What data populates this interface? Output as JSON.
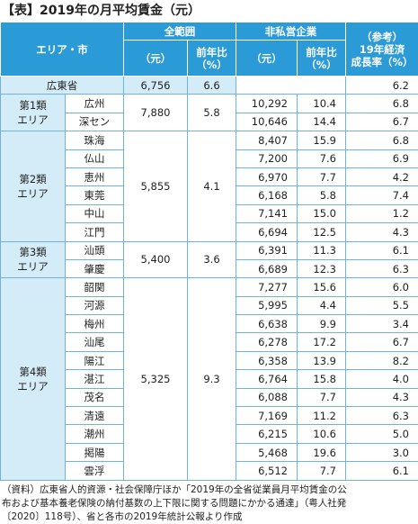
{
  "title": "【表】2019年の月平均賃金（元）",
  "header": {
    "area": "エリア・市",
    "all_range": "全範囲",
    "non_private": "非私営企業",
    "reference": [
      "（参考）",
      "19年経済",
      "成長率（%）"
    ],
    "unit": "（元）",
    "yoy": [
      "前年比",
      "（%）"
    ],
    "unit2": "（元）",
    "yoy2": [
      "前年比",
      "（%）"
    ]
  },
  "province": {
    "name": "広東省",
    "wage": "6,756",
    "yoy": "6.6",
    "growth": "6.2"
  },
  "groups": [
    {
      "label": [
        "第1類",
        "エリア"
      ],
      "wage": "7,880",
      "yoy": "5.8",
      "cities": [
        {
          "name": "広州",
          "wage": "10,292",
          "yoy": "10.4",
          "growth": "6.8"
        },
        {
          "name": "深セン",
          "wage": "10,646",
          "yoy": "14.4",
          "growth": "6.7"
        }
      ]
    },
    {
      "label": [
        "第2類",
        "エリア"
      ],
      "wage": "5,855",
      "yoy": "4.1",
      "cities": [
        {
          "name": "珠海",
          "wage": "8,407",
          "yoy": "15.9",
          "growth": "6.8"
        },
        {
          "name": "仏山",
          "wage": "7,200",
          "yoy": "7.6",
          "growth": "6.9"
        },
        {
          "name": "恵州",
          "wage": "6,970",
          "yoy": "7.7",
          "growth": "4.2"
        },
        {
          "name": "東莞",
          "wage": "6,168",
          "yoy": "5.8",
          "growth": "7.4"
        },
        {
          "name": "中山",
          "wage": "7,141",
          "yoy": "15.0",
          "growth": "1.2"
        },
        {
          "name": "江門",
          "wage": "6,694",
          "yoy": "12.5",
          "growth": "4.3"
        }
      ]
    },
    {
      "label": [
        "第3類",
        "エリア"
      ],
      "wage": "5,400",
      "yoy": "3.6",
      "cities": [
        {
          "name": "汕頭",
          "wage": "6,391",
          "yoy": "11.3",
          "growth": "6.1"
        },
        {
          "name": "肇慶",
          "wage": "6,689",
          "yoy": "12.3",
          "growth": "6.3"
        }
      ]
    },
    {
      "label": [
        "第4類",
        "エリア"
      ],
      "wage": "5,325",
      "yoy": "9.3",
      "cities": [
        {
          "name": "韶関",
          "wage": "7,277",
          "yoy": "15.6",
          "growth": "6.0"
        },
        {
          "name": "河源",
          "wage": "5,995",
          "yoy": "4.4",
          "growth": "5.5"
        },
        {
          "name": "梅州",
          "wage": "6,638",
          "yoy": "9.9",
          "growth": "3.4"
        },
        {
          "name": "汕尾",
          "wage": "6,278",
          "yoy": "17.2",
          "growth": "6.7"
        },
        {
          "name": "陽江",
          "wage": "6,358",
          "yoy": "13.9",
          "growth": "8.2"
        },
        {
          "name": "湛江",
          "wage": "6,764",
          "yoy": "15.8",
          "growth": "4.0"
        },
        {
          "name": "茂名",
          "wage": "6,088",
          "yoy": "7.7",
          "growth": "4.3"
        },
        {
          "name": "清遠",
          "wage": "7,169",
          "yoy": "11.2",
          "growth": "6.3"
        },
        {
          "name": "潮州",
          "wage": "6,215",
          "yoy": "10.6",
          "growth": "5.0"
        },
        {
          "name": "掲陽",
          "wage": "5,468",
          "yoy": "19.6",
          "growth": "3.0"
        },
        {
          "name": "雲浮",
          "wage": "6,512",
          "yoy": "7.7",
          "growth": "6.1"
        }
      ]
    }
  ],
  "footer": [
    "（資料）広東省人的資源・社会保障庁ほか「2019年の全省従業員月平均賃金の公",
    "布および基本養老保険の納付基数の上下限に関する問題にかかる通達」（粤人社発",
    "〔2020〕118号）、省と各市の2019年統計公報より作成"
  ]
}
